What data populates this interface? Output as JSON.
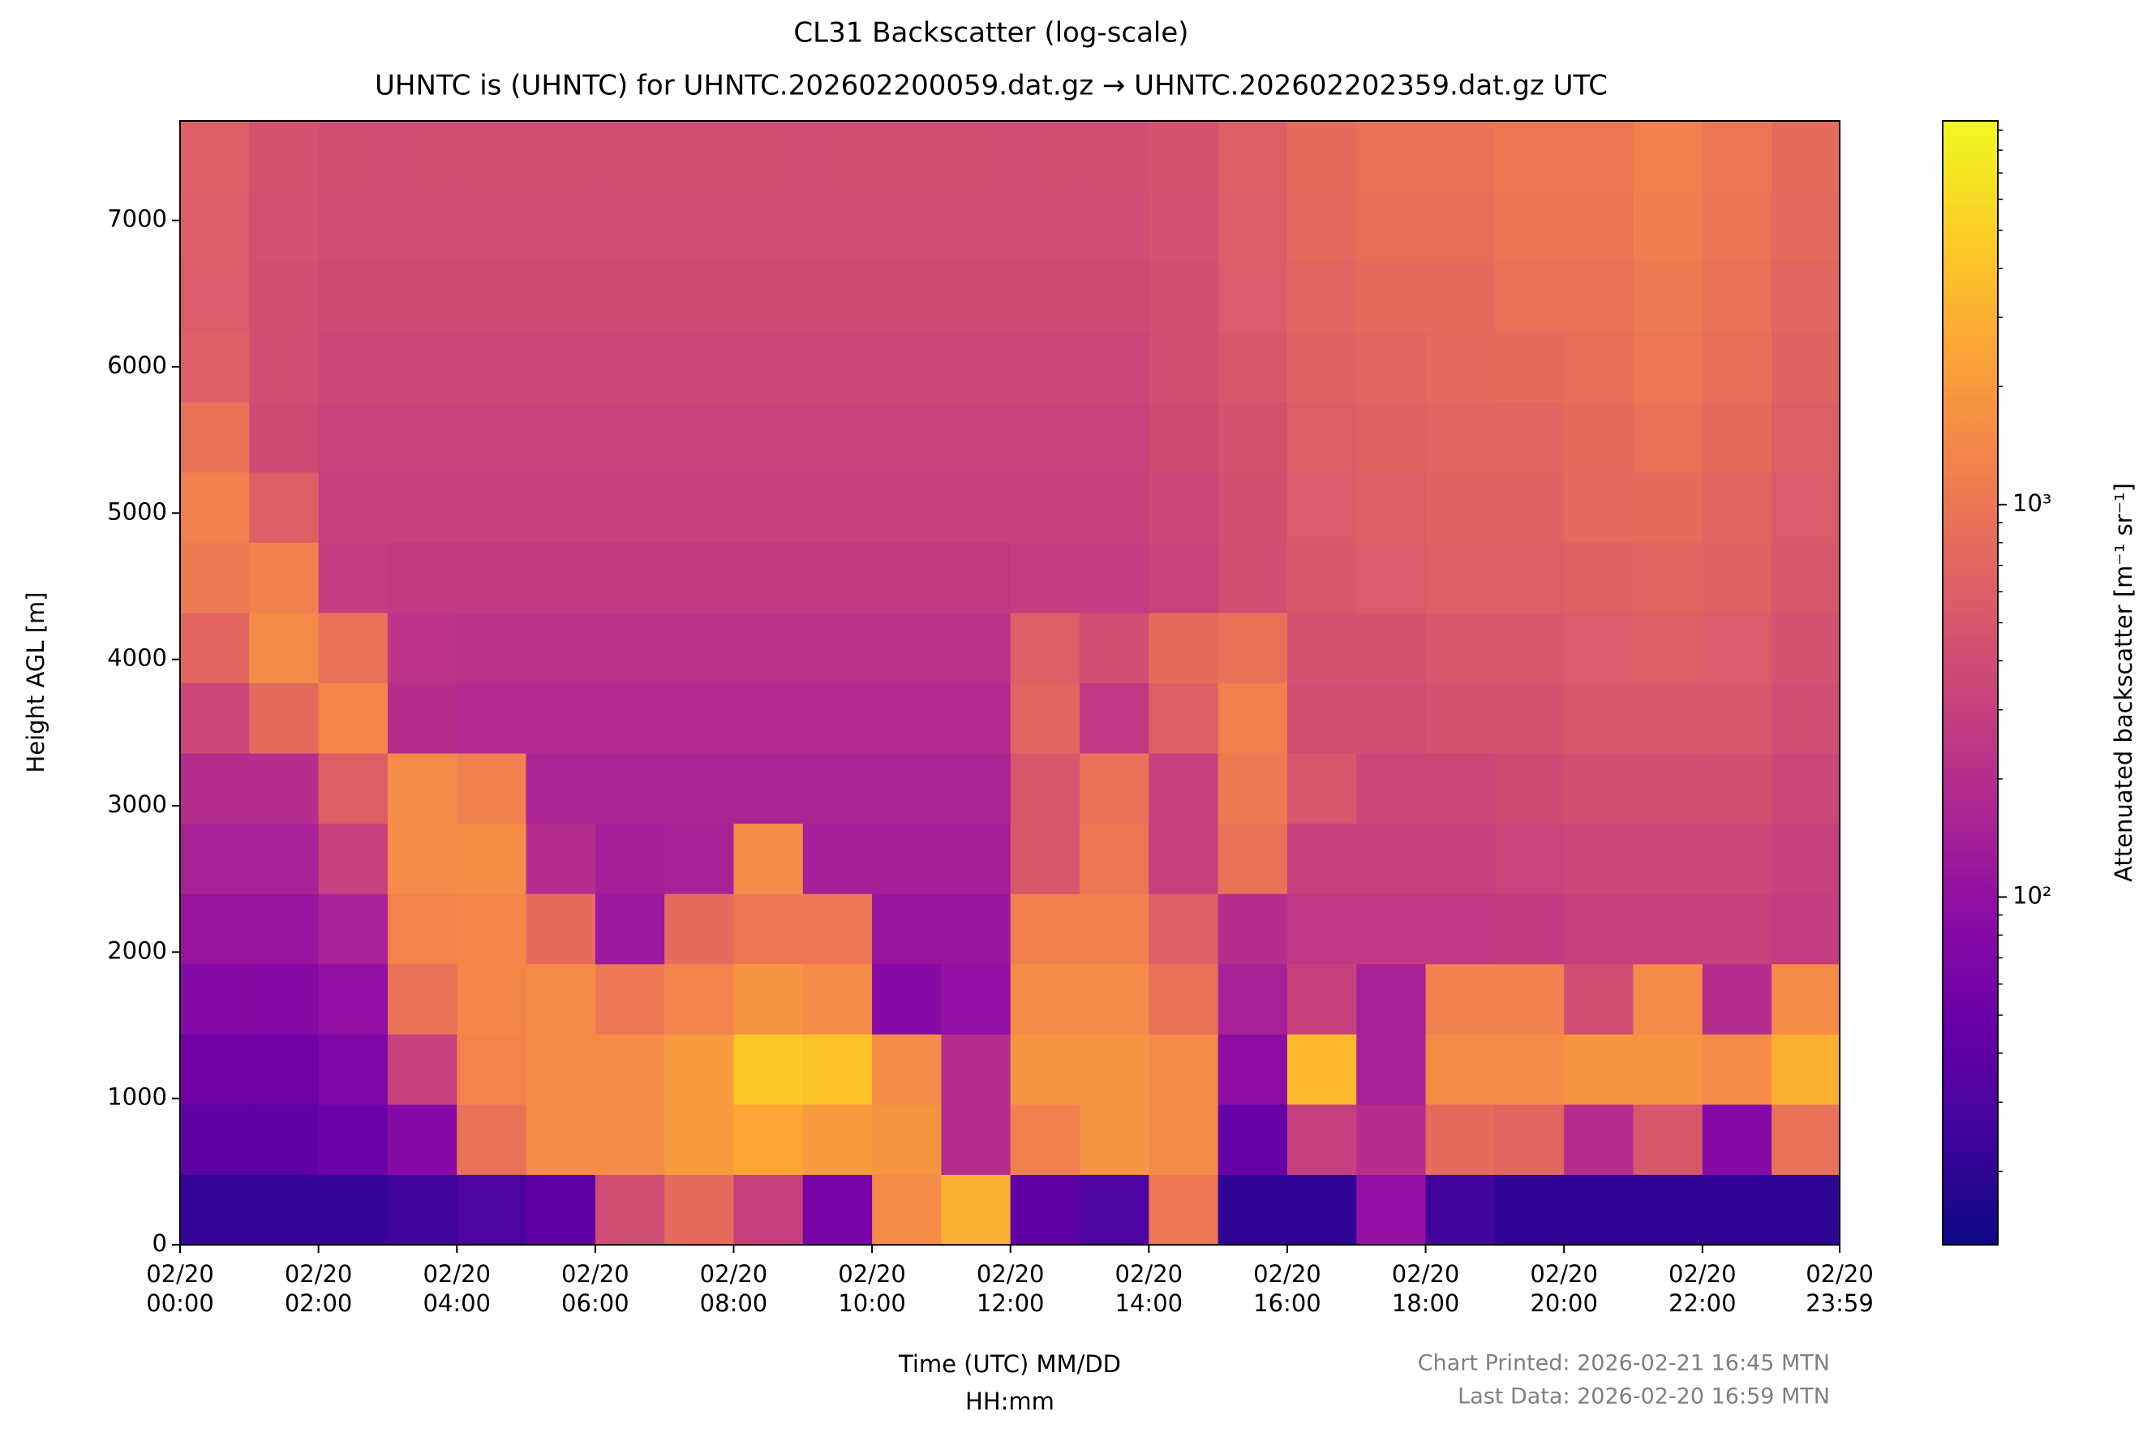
{
  "chart_data": {
    "type": "heatmap",
    "title": [
      "CL31 Backscatter (log-scale)",
      "UHNTC is (UHNTC) for UHNTC.202602200059.dat.gz → UHNTC.202602202359.dat.gz UTC"
    ],
    "xlabel": [
      "Time (UTC) MM/DD",
      "HH:mm"
    ],
    "ylabel": "Height AGL [m]",
    "colorbar_label": "Attenuated backscatter [m⁻¹ sr⁻¹]",
    "footnote": [
      "Chart Printed: 2026-02-21 16:45 MTN",
      "Last Data: 2026-02-20 16:59 MTN"
    ],
    "colormap": "plasma",
    "log_color": true,
    "clim": [
      13,
      9500
    ],
    "cticks": [
      {
        "value": 100,
        "label": "10²"
      },
      {
        "value": 1000,
        "label": "10³"
      }
    ],
    "cminor_ticks": [
      20,
      30,
      40,
      50,
      60,
      70,
      80,
      90,
      200,
      300,
      400,
      500,
      600,
      700,
      800,
      900,
      2000,
      3000,
      4000,
      5000,
      6000,
      7000,
      8000,
      9000
    ],
    "xlim": [
      0,
      23.9833
    ],
    "xticks": [
      {
        "value": 0,
        "label": "02/20\n00:00"
      },
      {
        "value": 2,
        "label": "02/20\n02:00"
      },
      {
        "value": 4,
        "label": "02/20\n04:00"
      },
      {
        "value": 6,
        "label": "02/20\n06:00"
      },
      {
        "value": 8,
        "label": "02/20\n08:00"
      },
      {
        "value": 10,
        "label": "02/20\n10:00"
      },
      {
        "value": 12,
        "label": "02/20\n12:00"
      },
      {
        "value": 14,
        "label": "02/20\n14:00"
      },
      {
        "value": 16,
        "label": "02/20\n16:00"
      },
      {
        "value": 18,
        "label": "02/20\n18:00"
      },
      {
        "value": 20,
        "label": "02/20\n20:00"
      },
      {
        "value": 22,
        "label": "02/20\n22:00"
      },
      {
        "value": 23.9833,
        "label": "02/20\n23:59"
      }
    ],
    "ylim": [
      0,
      7680
    ],
    "yticks": [
      0,
      1000,
      2000,
      3000,
      4000,
      5000,
      6000,
      7000
    ],
    "x_edges": [
      0,
      1,
      2,
      3,
      4,
      5,
      6,
      7,
      8,
      9,
      10,
      11,
      12,
      13,
      14,
      15,
      16,
      17,
      18,
      19,
      20,
      21,
      22,
      23,
      23.9833
    ],
    "y_edges": [
      0,
      480,
      960,
      1440,
      1920,
      2400,
      2880,
      3360,
      3840,
      4320,
      4800,
      5280,
      5760,
      6240,
      6720,
      7200,
      7680
    ],
    "z": [
      [
        22,
        22,
        22,
        25,
        30,
        40,
        400,
        800,
        300,
        60,
        1500,
        3000,
        40,
        30,
        1000,
        20,
        20,
        100,
        25,
        20,
        20,
        20,
        20,
        20
      ],
      [
        40,
        40,
        50,
        80,
        900,
        1500,
        1500,
        2000,
        2500,
        2000,
        1800,
        200,
        1200,
        1800,
        1500,
        45,
        300,
        200,
        800,
        700,
        200,
        500,
        80,
        900
      ],
      [
        55,
        55,
        70,
        300,
        1300,
        1500,
        1500,
        2000,
        4500,
        4000,
        1500,
        200,
        1800,
        1800,
        1500,
        90,
        3500,
        150,
        1500,
        1500,
        1800,
        1800,
        1500,
        3000
      ],
      [
        80,
        80,
        100,
        900,
        1400,
        1500,
        1000,
        1300,
        1800,
        1500,
        80,
        100,
        1500,
        1500,
        900,
        150,
        300,
        150,
        1200,
        1200,
        400,
        1500,
        200,
        1500
      ],
      [
        110,
        110,
        150,
        1300,
        1400,
        800,
        120,
        800,
        1000,
        1000,
        110,
        110,
        1200,
        1200,
        600,
        200,
        250,
        250,
        250,
        270,
        300,
        300,
        300,
        280
      ],
      [
        150,
        150,
        300,
        1500,
        1600,
        200,
        140,
        150,
        1500,
        140,
        140,
        140,
        500,
        1000,
        300,
        900,
        300,
        300,
        300,
        330,
        350,
        350,
        350,
        300
      ],
      [
        200,
        200,
        600,
        1500,
        1200,
        160,
        160,
        160,
        160,
        160,
        160,
        160,
        500,
        900,
        300,
        1100,
        500,
        350,
        350,
        380,
        420,
        420,
        420,
        350
      ],
      [
        350,
        800,
        1400,
        200,
        180,
        180,
        180,
        180,
        180,
        180,
        180,
        180,
        700,
        250,
        600,
        1200,
        400,
        400,
        450,
        450,
        500,
        500,
        500,
        400
      ],
      [
        700,
        1500,
        900,
        230,
        220,
        220,
        220,
        220,
        220,
        220,
        220,
        220,
        600,
        400,
        800,
        900,
        450,
        450,
        500,
        500,
        550,
        600,
        550,
        450
      ],
      [
        1100,
        1200,
        280,
        260,
        260,
        260,
        260,
        260,
        260,
        260,
        260,
        260,
        280,
        280,
        320,
        400,
        500,
        550,
        600,
        600,
        650,
        700,
        650,
        500
      ],
      [
        1200,
        600,
        300,
        300,
        300,
        300,
        300,
        300,
        300,
        300,
        300,
        300,
        300,
        300,
        350,
        420,
        550,
        600,
        650,
        650,
        750,
        800,
        700,
        550
      ],
      [
        900,
        380,
        320,
        320,
        320,
        320,
        320,
        320,
        320,
        320,
        320,
        320,
        320,
        320,
        380,
        450,
        600,
        650,
        700,
        700,
        800,
        900,
        800,
        600
      ],
      [
        600,
        400,
        350,
        350,
        350,
        350,
        350,
        350,
        350,
        350,
        350,
        350,
        350,
        350,
        400,
        500,
        650,
        700,
        750,
        800,
        850,
        1000,
        850,
        650
      ],
      [
        550,
        420,
        380,
        380,
        380,
        380,
        380,
        380,
        380,
        380,
        380,
        380,
        380,
        380,
        420,
        550,
        700,
        800,
        800,
        900,
        900,
        1100,
        900,
        700
      ],
      [
        580,
        440,
        390,
        390,
        390,
        390,
        390,
        390,
        390,
        390,
        390,
        390,
        390,
        390,
        440,
        580,
        750,
        850,
        850,
        950,
        950,
        1150,
        950,
        750
      ],
      [
        600,
        450,
        400,
        400,
        400,
        400,
        400,
        400,
        400,
        400,
        400,
        400,
        400,
        400,
        450,
        600,
        800,
        900,
        900,
        1000,
        1000,
        1200,
        1000,
        800
      ]
    ]
  }
}
